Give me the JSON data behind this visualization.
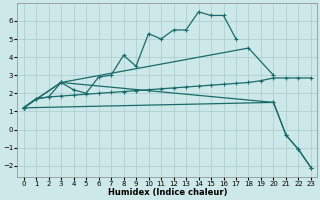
{
  "xlabel": "Humidex (Indice chaleur)",
  "background_color": "#cce8e8",
  "grid_color": "#aacccc",
  "line_color": "#1a6b6b",
  "xlim": [
    -0.5,
    23.5
  ],
  "ylim": [
    -2.6,
    7.0
  ],
  "xticks": [
    0,
    1,
    2,
    3,
    4,
    5,
    6,
    7,
    8,
    9,
    10,
    11,
    12,
    13,
    14,
    15,
    16,
    17,
    18,
    19,
    20,
    21,
    22,
    23
  ],
  "yticks": [
    -2,
    -1,
    0,
    1,
    2,
    3,
    4,
    5,
    6
  ],
  "line1_x": [
    0,
    1,
    2,
    3,
    4,
    5,
    6,
    7,
    8,
    9,
    10,
    11,
    12,
    13,
    14,
    15,
    16,
    17
  ],
  "line1_y": [
    1.2,
    1.7,
    1.8,
    2.6,
    2.2,
    2.0,
    2.9,
    3.0,
    4.1,
    3.5,
    5.3,
    5.0,
    5.5,
    5.5,
    6.5,
    6.3,
    6.3,
    5.0
  ],
  "line2_x": [
    0,
    3,
    18,
    20
  ],
  "line2_y": [
    1.2,
    2.6,
    4.5,
    3.0
  ],
  "line3_x": [
    0,
    1,
    2,
    3,
    4,
    5,
    6,
    7,
    8,
    9,
    10,
    11,
    12,
    13,
    14,
    15,
    16,
    17,
    18,
    19,
    20,
    21,
    22,
    23
  ],
  "line3_y": [
    1.2,
    1.7,
    1.8,
    1.85,
    1.9,
    1.95,
    2.0,
    2.05,
    2.1,
    2.15,
    2.2,
    2.25,
    2.3,
    2.35,
    2.4,
    2.45,
    2.5,
    2.55,
    2.6,
    2.7,
    2.85,
    2.85,
    2.85,
    2.85
  ],
  "line4_x": [
    0,
    20,
    21,
    22,
    23
  ],
  "line4_y": [
    1.2,
    1.5,
    -0.3,
    -1.1,
    -2.1
  ],
  "line5_x": [
    0,
    3,
    20,
    21,
    22,
    23
  ],
  "line5_y": [
    1.2,
    2.6,
    1.5,
    -0.3,
    -1.1,
    -2.1
  ]
}
